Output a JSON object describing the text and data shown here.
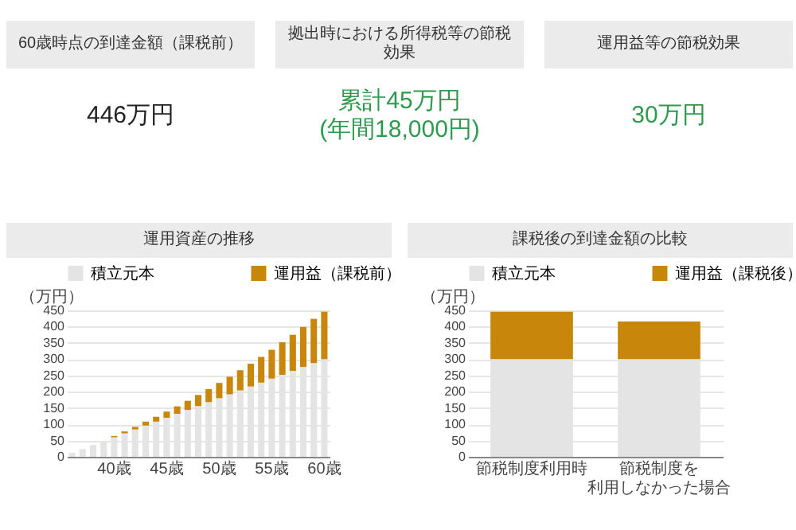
{
  "chart_data": [
    {
      "type": "other",
      "title": "60歳時点の到達金額（課税前）",
      "annotations": [
        "446万円"
      ],
      "color": "#222222"
    },
    {
      "type": "other",
      "title": "拠出時における所得税等の節税効果",
      "annotations": [
        "累計45万円",
        "(年間18,000円)"
      ],
      "color": "#2e9a4e"
    },
    {
      "type": "other",
      "title": "運用益等の節税効果",
      "annotations": [
        "30万円"
      ],
      "color": "#2e9a4e"
    },
    {
      "type": "bar",
      "title": "運用資産の推移",
      "ylabel": "（万円）",
      "stacked": true,
      "grid": "y",
      "legend": "top",
      "ylim": [
        0,
        450
      ],
      "yticks": [
        0,
        50,
        100,
        150,
        200,
        250,
        300,
        350,
        400,
        450
      ],
      "categories": [
        null,
        null,
        null,
        null,
        "40歳",
        null,
        null,
        null,
        null,
        "45歳",
        null,
        null,
        null,
        null,
        "50歳",
        null,
        null,
        null,
        null,
        "55歳",
        null,
        null,
        null,
        null,
        "60歳"
      ],
      "series": [
        {
          "name": "積立元本",
          "color": "#e4e4e4",
          "values": [
            12,
            24,
            36,
            48,
            60,
            72,
            84,
            96,
            108,
            120,
            132,
            144,
            156,
            168,
            180,
            192,
            204,
            216,
            228,
            240,
            252,
            264,
            276,
            288,
            300
          ]
        },
        {
          "name": "運用益（課税前）",
          "color": "#c8860a",
          "values": [
            0,
            0,
            null,
            null,
            4,
            6,
            8,
            12,
            15,
            19,
            23,
            28,
            34,
            40,
            47,
            54,
            62,
            70,
            79,
            89,
            100,
            111,
            123,
            136,
            146
          ]
        }
      ]
    },
    {
      "type": "bar",
      "title": "課税後の到達金額の比較",
      "ylabel": "（万円）",
      "stacked": true,
      "grid": "y",
      "legend": "top",
      "ylim": [
        0,
        450
      ],
      "yticks": [
        0,
        50,
        100,
        150,
        200,
        250,
        300,
        350,
        400,
        450
      ],
      "categories": [
        "節税制度利用時",
        "節税制度を利用しなかった場合"
      ],
      "series": [
        {
          "name": "積立元本",
          "color": "#e4e4e4",
          "values": [
            300,
            300
          ]
        },
        {
          "name": "運用益（課税後）",
          "color": "#c8860a",
          "values": [
            146,
            116
          ]
        }
      ]
    }
  ]
}
